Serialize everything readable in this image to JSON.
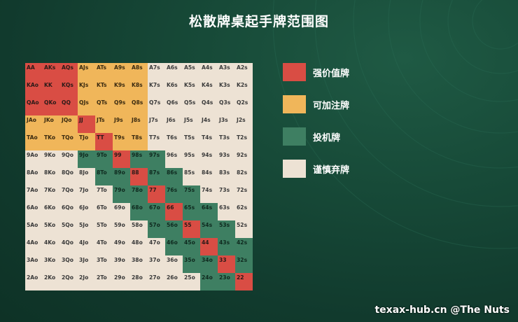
{
  "title": "松散牌桌起手牌范围图",
  "legend": [
    {
      "key": "strong",
      "label": "强价值牌",
      "color": "#d94d44"
    },
    {
      "key": "play",
      "label": "可加注牌",
      "color": "#f0b65a"
    },
    {
      "key": "spec",
      "label": "投机牌",
      "color": "#3e7f62"
    },
    {
      "key": "fold",
      "label": "谨慎弃牌",
      "color": "#ede2d4"
    }
  ],
  "grid": {
    "rows": [
      [
        "AA",
        "AKs",
        "AQs",
        "AJs",
        "ATs",
        "A9s",
        "A8s",
        "A7s",
        "A6s",
        "A5s",
        "A4s",
        "A3s",
        "A2s"
      ],
      [
        "KAo",
        "KK",
        "KQs",
        "KJs",
        "KTs",
        "K9s",
        "K8s",
        "K7s",
        "K6s",
        "K5s",
        "K4s",
        "K3s",
        "K2s"
      ],
      [
        "QAo",
        "QKo",
        "QQ",
        "QJs",
        "QTs",
        "Q9s",
        "Q8s",
        "Q7s",
        "Q6s",
        "Q5s",
        "Q4s",
        "Q3s",
        "Q2s"
      ],
      [
        "JAo",
        "JKo",
        "JQo",
        "JJ",
        "JTs",
        "J9s",
        "J8s",
        "J7s",
        "J6s",
        "J5s",
        "J4s",
        "J3s",
        "J2s"
      ],
      [
        "TAo",
        "TKo",
        "TQo",
        "TJo",
        "TT",
        "T9s",
        "T8s",
        "T7s",
        "T6s",
        "T5s",
        "T4s",
        "T3s",
        "T2s"
      ],
      [
        "9Ao",
        "9Ko",
        "9Qo",
        "9Jo",
        "9To",
        "99",
        "98s",
        "97s",
        "96s",
        "95s",
        "94s",
        "93s",
        "92s"
      ],
      [
        "8Ao",
        "8Ko",
        "8Qo",
        "8Jo",
        "8To",
        "89o",
        "88",
        "87s",
        "86s",
        "85s",
        "84s",
        "83s",
        "82s"
      ],
      [
        "7Ao",
        "7Ko",
        "7Qo",
        "7Jo",
        "7To",
        "79o",
        "78o",
        "77",
        "76s",
        "75s",
        "74s",
        "73s",
        "72s"
      ],
      [
        "6Ao",
        "6Ko",
        "6Qo",
        "6Jo",
        "6To",
        "69o",
        "68o",
        "67o",
        "66",
        "65s",
        "64s",
        "63s",
        "62s"
      ],
      [
        "5Ao",
        "5Ko",
        "5Qo",
        "5Jo",
        "5To",
        "59o",
        "58o",
        "57o",
        "56o",
        "55",
        "54s",
        "53s",
        "52s"
      ],
      [
        "4Ao",
        "4Ko",
        "4Qo",
        "4Jo",
        "4To",
        "49o",
        "48o",
        "47o",
        "46o",
        "45o",
        "44",
        "43s",
        "42s"
      ],
      [
        "3Ao",
        "3Ko",
        "3Qo",
        "3Jo",
        "3To",
        "39o",
        "38o",
        "37o",
        "36o",
        "35o",
        "34o",
        "33",
        "32s"
      ],
      [
        "2Ao",
        "2Ko",
        "2Qo",
        "2Jo",
        "2To",
        "29o",
        "28o",
        "27o",
        "26o",
        "25o",
        "24o",
        "23o",
        "22"
      ]
    ],
    "categories": [
      [
        "strong",
        "strong",
        "strong",
        "play",
        "play",
        "play",
        "play",
        "fold",
        "fold",
        "fold",
        "fold",
        "fold",
        "fold"
      ],
      [
        "strong",
        "strong",
        "strong",
        "play",
        "play",
        "play",
        "play",
        "fold",
        "fold",
        "fold",
        "fold",
        "fold",
        "fold"
      ],
      [
        "strong",
        "strong",
        "strong",
        "play",
        "play",
        "play",
        "play",
        "fold",
        "fold",
        "fold",
        "fold",
        "fold",
        "fold"
      ],
      [
        "play",
        "play",
        "play",
        "strong",
        "play",
        "play",
        "play",
        "fold",
        "fold",
        "fold",
        "fold",
        "fold",
        "fold"
      ],
      [
        "play",
        "play",
        "play",
        "play",
        "strong",
        "play",
        "play",
        "fold",
        "fold",
        "fold",
        "fold",
        "fold",
        "fold"
      ],
      [
        "fold",
        "fold",
        "fold",
        "spec",
        "spec",
        "strong",
        "spec",
        "spec",
        "fold",
        "fold",
        "fold",
        "fold",
        "fold"
      ],
      [
        "fold",
        "fold",
        "fold",
        "fold",
        "spec",
        "spec",
        "strong",
        "spec",
        "spec",
        "fold",
        "fold",
        "fold",
        "fold"
      ],
      [
        "fold",
        "fold",
        "fold",
        "fold",
        "fold",
        "spec",
        "spec",
        "strong",
        "spec",
        "spec",
        "fold",
        "fold",
        "fold"
      ],
      [
        "fold",
        "fold",
        "fold",
        "fold",
        "fold",
        "fold",
        "spec",
        "spec",
        "strong",
        "spec",
        "spec",
        "fold",
        "fold"
      ],
      [
        "fold",
        "fold",
        "fold",
        "fold",
        "fold",
        "fold",
        "fold",
        "spec",
        "spec",
        "strong",
        "spec",
        "spec",
        "fold"
      ],
      [
        "fold",
        "fold",
        "fold",
        "fold",
        "fold",
        "fold",
        "fold",
        "fold",
        "spec",
        "spec",
        "strong",
        "spec",
        "spec"
      ],
      [
        "fold",
        "fold",
        "fold",
        "fold",
        "fold",
        "fold",
        "fold",
        "fold",
        "fold",
        "spec",
        "spec",
        "strong",
        "spec"
      ],
      [
        "fold",
        "fold",
        "fold",
        "fold",
        "fold",
        "fold",
        "fold",
        "fold",
        "fold",
        "fold",
        "spec",
        "spec",
        "strong"
      ]
    ]
  },
  "watermark": "texax-hub.cn @The Nuts"
}
